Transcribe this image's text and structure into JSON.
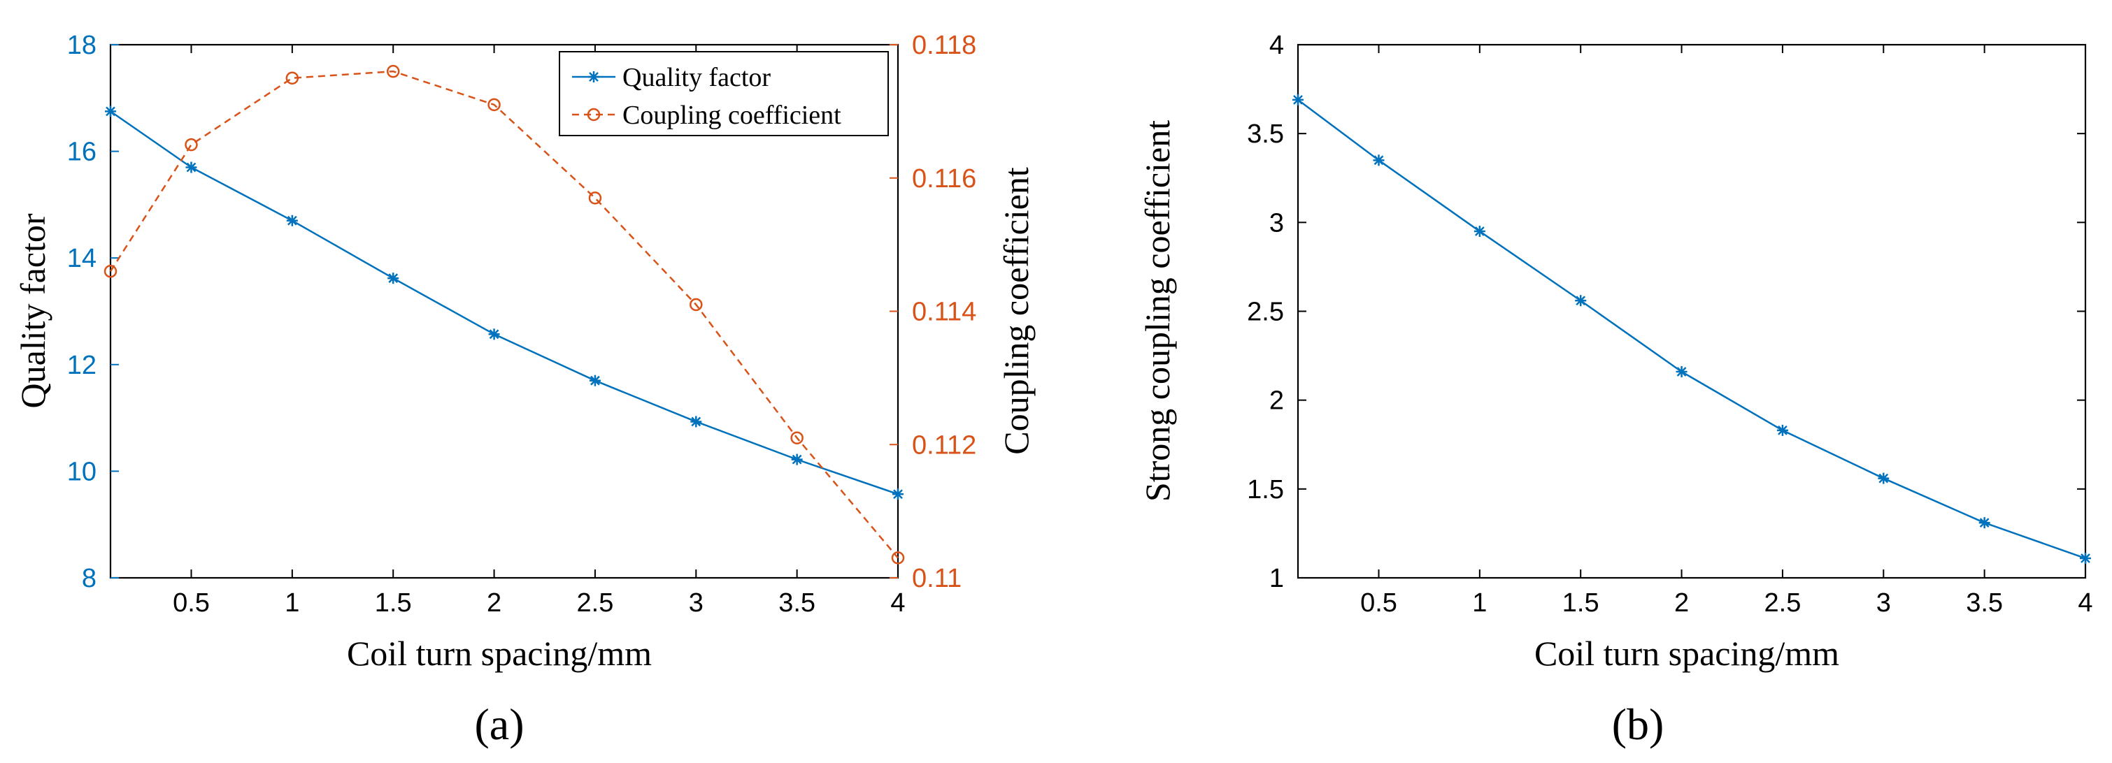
{
  "colors": {
    "blue": "#0072BD",
    "orange": "#D95319",
    "axis": "#000000"
  },
  "chart_data": [
    {
      "id": "a",
      "type": "line",
      "panel_label": "(a)",
      "xlabel": "Coil turn spacing/mm",
      "ylabel_left": "Quality factor",
      "ylabel_right": "Coupling coefficient",
      "xlim": [
        0.1,
        4
      ],
      "xticks": [
        0.5,
        1,
        1.5,
        2,
        2.5,
        3,
        3.5,
        4
      ],
      "xtick_labels": [
        "0.5",
        "1",
        "1.5",
        "2",
        "2.5",
        "3",
        "3.5",
        "4"
      ],
      "ylim_left": [
        8,
        18
      ],
      "yticks_left": [
        8,
        10,
        12,
        14,
        16,
        18
      ],
      "ytick_labels_left": [
        "8",
        "10",
        "12",
        "14",
        "16",
        "18"
      ],
      "ylim_right": [
        0.11,
        0.118
      ],
      "yticks_right": [
        0.11,
        0.112,
        0.114,
        0.116,
        0.118
      ],
      "ytick_labels_right": [
        "0.11",
        "0.112",
        "0.114",
        "0.116",
        "0.118"
      ],
      "legend_position": "top-right",
      "x": [
        0.1,
        0.5,
        1,
        1.5,
        2,
        2.5,
        3,
        3.5,
        4
      ],
      "series": [
        {
          "name": "Quality factor",
          "axis": "left",
          "marker": "asterisk",
          "line": "solid",
          "values": [
            16.75,
            15.7,
            14.7,
            13.62,
            12.57,
            11.7,
            10.93,
            10.22,
            9.57
          ]
        },
        {
          "name": "Coupling coefficient",
          "axis": "right",
          "marker": "circle",
          "line": "dashed",
          "values": [
            0.1146,
            0.1165,
            0.1175,
            0.1176,
            0.1171,
            0.1157,
            0.1141,
            0.1121,
            0.1103
          ]
        }
      ]
    },
    {
      "id": "b",
      "type": "line",
      "panel_label": "(b)",
      "xlabel": "Coil turn spacing/mm",
      "ylabel": "Strong coupling coefficient",
      "xlim": [
        0.1,
        4
      ],
      "xticks": [
        0.5,
        1,
        1.5,
        2,
        2.5,
        3,
        3.5,
        4
      ],
      "xtick_labels": [
        "0.5",
        "1",
        "1.5",
        "2",
        "2.5",
        "3",
        "3.5",
        "4"
      ],
      "ylim": [
        1,
        4
      ],
      "yticks": [
        1,
        1.5,
        2,
        2.5,
        3,
        3.5,
        4
      ],
      "ytick_labels": [
        "1",
        "1.5",
        "2",
        "2.5",
        "3",
        "3.5",
        "4"
      ],
      "x": [
        0.1,
        0.5,
        1,
        1.5,
        2,
        2.5,
        3,
        3.5,
        4
      ],
      "series": [
        {
          "name": "Strong coupling coefficient",
          "marker": "asterisk",
          "line": "solid",
          "values": [
            3.69,
            3.35,
            2.95,
            2.56,
            2.16,
            1.83,
            1.56,
            1.31,
            1.11
          ]
        }
      ]
    }
  ]
}
